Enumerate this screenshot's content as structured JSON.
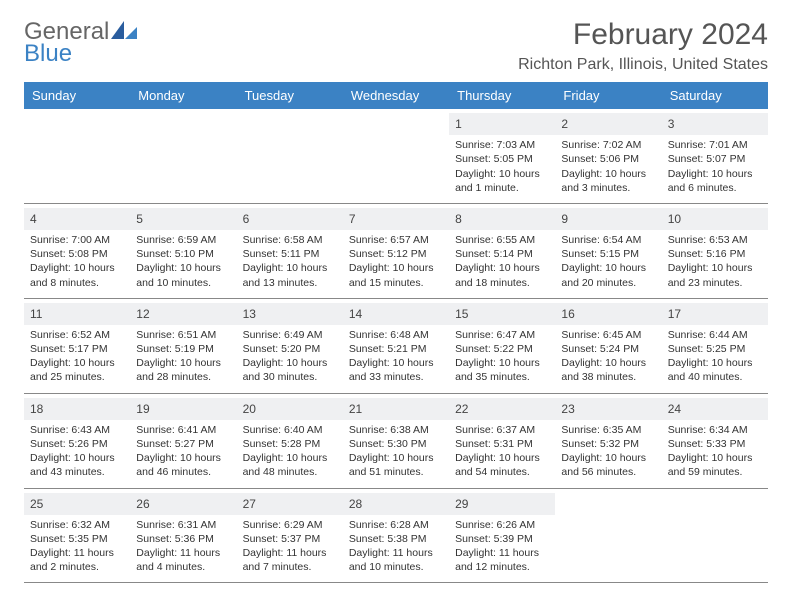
{
  "logo": {
    "general": "General",
    "blue": "Blue"
  },
  "title": "February 2024",
  "location": "Richton Park, Illinois, United States",
  "colors": {
    "header_bg": "#3b82c4",
    "header_text": "#ffffff",
    "daynum_bg": "#eff0f2",
    "border": "#888888",
    "text": "#333333",
    "logo_blue": "#3b82c4",
    "logo_gray": "#666666"
  },
  "weekdays": [
    "Sunday",
    "Monday",
    "Tuesday",
    "Wednesday",
    "Thursday",
    "Friday",
    "Saturday"
  ],
  "weeks": [
    [
      null,
      null,
      null,
      null,
      {
        "n": "1",
        "sr": "Sunrise: 7:03 AM",
        "ss": "Sunset: 5:05 PM",
        "dl1": "Daylight: 10 hours",
        "dl2": "and 1 minute."
      },
      {
        "n": "2",
        "sr": "Sunrise: 7:02 AM",
        "ss": "Sunset: 5:06 PM",
        "dl1": "Daylight: 10 hours",
        "dl2": "and 3 minutes."
      },
      {
        "n": "3",
        "sr": "Sunrise: 7:01 AM",
        "ss": "Sunset: 5:07 PM",
        "dl1": "Daylight: 10 hours",
        "dl2": "and 6 minutes."
      }
    ],
    [
      {
        "n": "4",
        "sr": "Sunrise: 7:00 AM",
        "ss": "Sunset: 5:08 PM",
        "dl1": "Daylight: 10 hours",
        "dl2": "and 8 minutes."
      },
      {
        "n": "5",
        "sr": "Sunrise: 6:59 AM",
        "ss": "Sunset: 5:10 PM",
        "dl1": "Daylight: 10 hours",
        "dl2": "and 10 minutes."
      },
      {
        "n": "6",
        "sr": "Sunrise: 6:58 AM",
        "ss": "Sunset: 5:11 PM",
        "dl1": "Daylight: 10 hours",
        "dl2": "and 13 minutes."
      },
      {
        "n": "7",
        "sr": "Sunrise: 6:57 AM",
        "ss": "Sunset: 5:12 PM",
        "dl1": "Daylight: 10 hours",
        "dl2": "and 15 minutes."
      },
      {
        "n": "8",
        "sr": "Sunrise: 6:55 AM",
        "ss": "Sunset: 5:14 PM",
        "dl1": "Daylight: 10 hours",
        "dl2": "and 18 minutes."
      },
      {
        "n": "9",
        "sr": "Sunrise: 6:54 AM",
        "ss": "Sunset: 5:15 PM",
        "dl1": "Daylight: 10 hours",
        "dl2": "and 20 minutes."
      },
      {
        "n": "10",
        "sr": "Sunrise: 6:53 AM",
        "ss": "Sunset: 5:16 PM",
        "dl1": "Daylight: 10 hours",
        "dl2": "and 23 minutes."
      }
    ],
    [
      {
        "n": "11",
        "sr": "Sunrise: 6:52 AM",
        "ss": "Sunset: 5:17 PM",
        "dl1": "Daylight: 10 hours",
        "dl2": "and 25 minutes."
      },
      {
        "n": "12",
        "sr": "Sunrise: 6:51 AM",
        "ss": "Sunset: 5:19 PM",
        "dl1": "Daylight: 10 hours",
        "dl2": "and 28 minutes."
      },
      {
        "n": "13",
        "sr": "Sunrise: 6:49 AM",
        "ss": "Sunset: 5:20 PM",
        "dl1": "Daylight: 10 hours",
        "dl2": "and 30 minutes."
      },
      {
        "n": "14",
        "sr": "Sunrise: 6:48 AM",
        "ss": "Sunset: 5:21 PM",
        "dl1": "Daylight: 10 hours",
        "dl2": "and 33 minutes."
      },
      {
        "n": "15",
        "sr": "Sunrise: 6:47 AM",
        "ss": "Sunset: 5:22 PM",
        "dl1": "Daylight: 10 hours",
        "dl2": "and 35 minutes."
      },
      {
        "n": "16",
        "sr": "Sunrise: 6:45 AM",
        "ss": "Sunset: 5:24 PM",
        "dl1": "Daylight: 10 hours",
        "dl2": "and 38 minutes."
      },
      {
        "n": "17",
        "sr": "Sunrise: 6:44 AM",
        "ss": "Sunset: 5:25 PM",
        "dl1": "Daylight: 10 hours",
        "dl2": "and 40 minutes."
      }
    ],
    [
      {
        "n": "18",
        "sr": "Sunrise: 6:43 AM",
        "ss": "Sunset: 5:26 PM",
        "dl1": "Daylight: 10 hours",
        "dl2": "and 43 minutes."
      },
      {
        "n": "19",
        "sr": "Sunrise: 6:41 AM",
        "ss": "Sunset: 5:27 PM",
        "dl1": "Daylight: 10 hours",
        "dl2": "and 46 minutes."
      },
      {
        "n": "20",
        "sr": "Sunrise: 6:40 AM",
        "ss": "Sunset: 5:28 PM",
        "dl1": "Daylight: 10 hours",
        "dl2": "and 48 minutes."
      },
      {
        "n": "21",
        "sr": "Sunrise: 6:38 AM",
        "ss": "Sunset: 5:30 PM",
        "dl1": "Daylight: 10 hours",
        "dl2": "and 51 minutes."
      },
      {
        "n": "22",
        "sr": "Sunrise: 6:37 AM",
        "ss": "Sunset: 5:31 PM",
        "dl1": "Daylight: 10 hours",
        "dl2": "and 54 minutes."
      },
      {
        "n": "23",
        "sr": "Sunrise: 6:35 AM",
        "ss": "Sunset: 5:32 PM",
        "dl1": "Daylight: 10 hours",
        "dl2": "and 56 minutes."
      },
      {
        "n": "24",
        "sr": "Sunrise: 6:34 AM",
        "ss": "Sunset: 5:33 PM",
        "dl1": "Daylight: 10 hours",
        "dl2": "and 59 minutes."
      }
    ],
    [
      {
        "n": "25",
        "sr": "Sunrise: 6:32 AM",
        "ss": "Sunset: 5:35 PM",
        "dl1": "Daylight: 11 hours",
        "dl2": "and 2 minutes."
      },
      {
        "n": "26",
        "sr": "Sunrise: 6:31 AM",
        "ss": "Sunset: 5:36 PM",
        "dl1": "Daylight: 11 hours",
        "dl2": "and 4 minutes."
      },
      {
        "n": "27",
        "sr": "Sunrise: 6:29 AM",
        "ss": "Sunset: 5:37 PM",
        "dl1": "Daylight: 11 hours",
        "dl2": "and 7 minutes."
      },
      {
        "n": "28",
        "sr": "Sunrise: 6:28 AM",
        "ss": "Sunset: 5:38 PM",
        "dl1": "Daylight: 11 hours",
        "dl2": "and 10 minutes."
      },
      {
        "n": "29",
        "sr": "Sunrise: 6:26 AM",
        "ss": "Sunset: 5:39 PM",
        "dl1": "Daylight: 11 hours",
        "dl2": "and 12 minutes."
      },
      null,
      null
    ]
  ]
}
